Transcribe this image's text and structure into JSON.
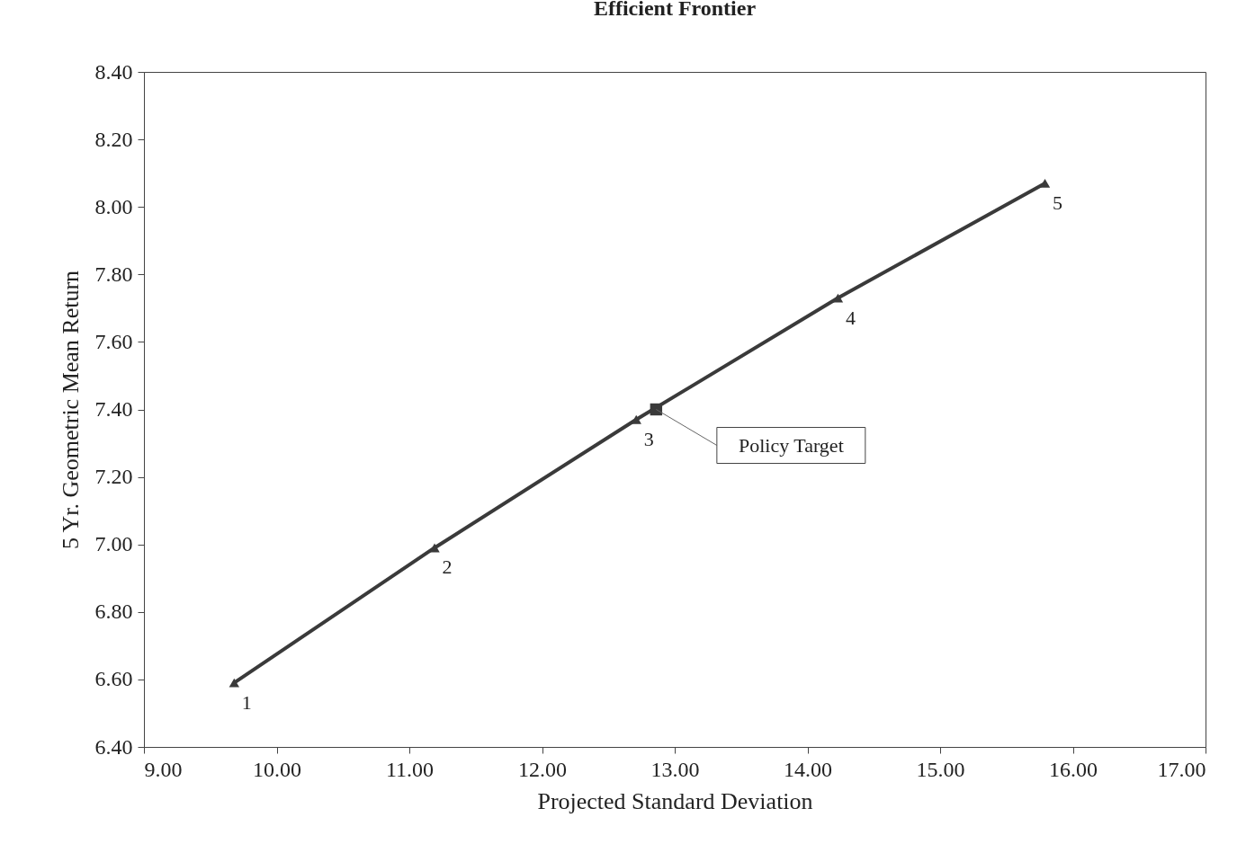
{
  "chart_data": {
    "type": "line",
    "title": "Efficient Frontier",
    "xlabel": "Projected Standard Deviation",
    "ylabel": "5 Yr. Geometric Mean Return",
    "xlim": [
      9,
      17
    ],
    "ylim": [
      6.4,
      8.4
    ],
    "xticks": [
      {
        "value": 9,
        "label": "9.00"
      },
      {
        "value": 10,
        "label": "10.00"
      },
      {
        "value": 11,
        "label": "11.00"
      },
      {
        "value": 12,
        "label": "12.00"
      },
      {
        "value": 13,
        "label": "13.00"
      },
      {
        "value": 14,
        "label": "14.00"
      },
      {
        "value": 15,
        "label": "15.00"
      },
      {
        "value": 16,
        "label": "16.00"
      },
      {
        "value": 17,
        "label": "17.00"
      }
    ],
    "yticks": [
      {
        "value": 6.4,
        "label": "6.40"
      },
      {
        "value": 6.6,
        "label": "6.60"
      },
      {
        "value": 6.8,
        "label": "6.80"
      },
      {
        "value": 7,
        "label": "7.00"
      },
      {
        "value": 7.2,
        "label": "7.20"
      },
      {
        "value": 7.4,
        "label": "7.40"
      },
      {
        "value": 7.6,
        "label": "7.60"
      },
      {
        "value": 7.8,
        "label": "7.80"
      },
      {
        "value": 8,
        "label": "8.00"
      },
      {
        "value": 8.2,
        "label": "8.20"
      },
      {
        "value": 8.4,
        "label": "8.40"
      }
    ],
    "series": [
      {
        "type": "line",
        "color": "#3a3a3a",
        "marker": "triangle",
        "x": [
          9.68,
          11.19,
          12.71,
          14.23,
          15.79
        ],
        "values": [
          6.59,
          6.99,
          7.37,
          7.73,
          8.07
        ]
      },
      {
        "type": "scatter",
        "color": "#3a3a3a",
        "marker": "square",
        "x": [
          12.86
        ],
        "values": [
          7.4
        ]
      }
    ],
    "annotations": [
      {
        "text": "1",
        "x": 9.68,
        "y": 6.59
      },
      {
        "text": "2",
        "x": 11.19,
        "y": 6.99
      },
      {
        "text": "3",
        "x": 12.71,
        "y": 7.37
      },
      {
        "text": "4",
        "x": 14.23,
        "y": 7.73
      },
      {
        "text": "5",
        "x": 15.79,
        "y": 8.07
      },
      {
        "text": "Policy Target",
        "x": 12.86,
        "y": 7.4
      }
    ]
  }
}
